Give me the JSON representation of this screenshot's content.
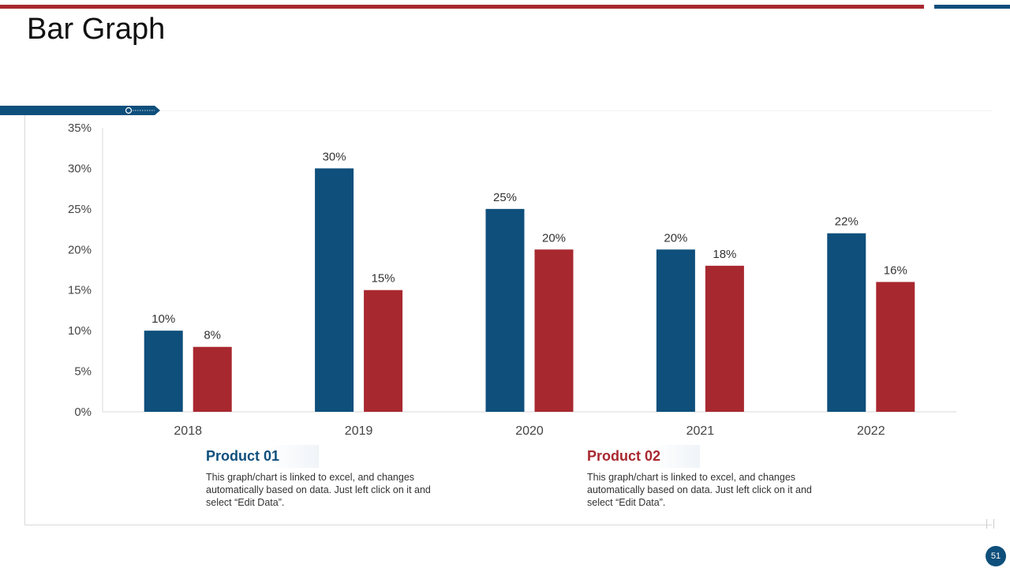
{
  "slide": {
    "title": "Bar Graph",
    "page_number": "51"
  },
  "colors": {
    "product01": "#0e4f7c",
    "product02": "#a8282f"
  },
  "legend": [
    {
      "name": "Product 01",
      "text": "This graph/chart is linked to excel, and changes automatically based on data. Just left click on it and select “Edit Data”."
    },
    {
      "name": "Product 02",
      "text": "This graph/chart is linked to excel, and changes automatically based on data. Just left click on it and select “Edit Data”."
    }
  ],
  "chart_data": {
    "type": "bar",
    "title": "",
    "xlabel": "",
    "ylabel": "",
    "categories": [
      "2018",
      "2019",
      "2020",
      "2021",
      "2022"
    ],
    "series": [
      {
        "name": "Product 01",
        "values": [
          10,
          30,
          25,
          20,
          22
        ],
        "labels": [
          "10%",
          "30%",
          "25%",
          "20%",
          "22%"
        ]
      },
      {
        "name": "Product 02",
        "values": [
          8,
          15,
          20,
          18,
          16
        ],
        "labels": [
          "8%",
          "15%",
          "20%",
          "18%",
          "16%"
        ]
      }
    ],
    "ylim": [
      0,
      35
    ],
    "yticks": [
      0,
      5,
      10,
      15,
      20,
      25,
      30,
      35
    ],
    "ytick_labels": [
      "0%",
      "5%",
      "10%",
      "15%",
      "20%",
      "25%",
      "30%",
      "35%"
    ],
    "grid": false,
    "legend": "below"
  }
}
